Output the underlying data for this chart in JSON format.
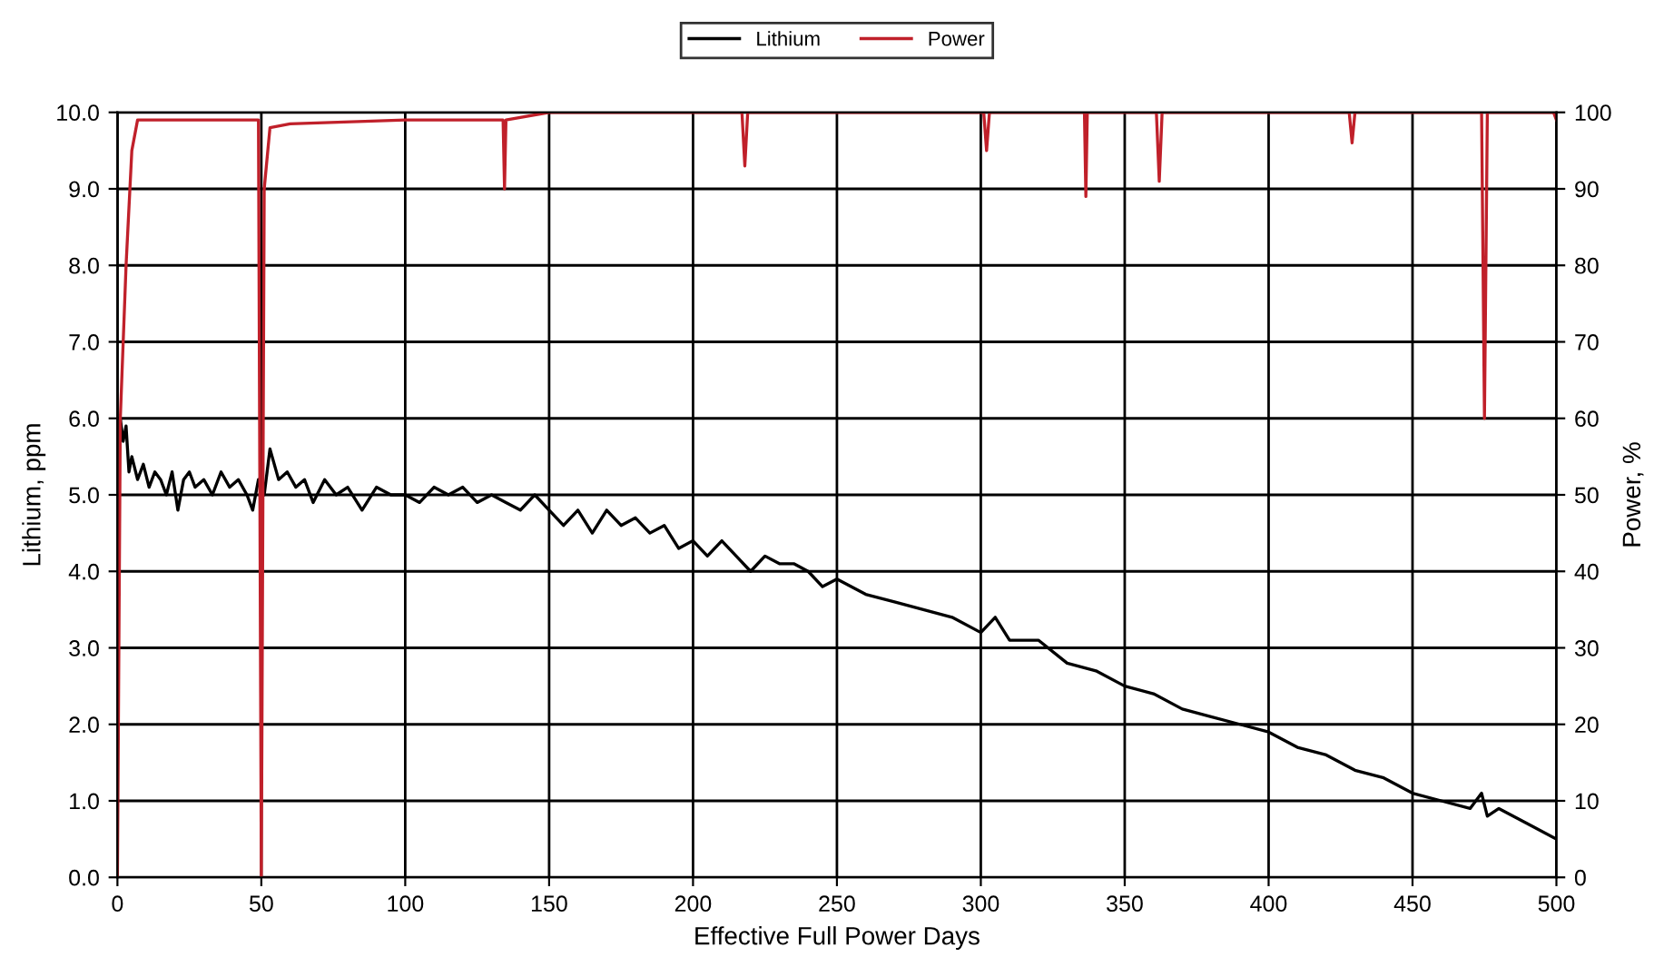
{
  "chart_data": {
    "type": "line",
    "xlabel": "Effective Full Power Days",
    "ylabel": "Lithium, ppm",
    "y2label": "Power, %",
    "xlim": [
      0,
      500
    ],
    "xticks": [
      0,
      50,
      100,
      150,
      200,
      250,
      300,
      350,
      400,
      450,
      500
    ],
    "ylim": [
      0,
      10
    ],
    "yticks": [
      {
        "value": 0,
        "label": "0.0"
      },
      {
        "value": 1,
        "label": "1.0"
      },
      {
        "value": 2,
        "label": "2.0"
      },
      {
        "value": 3,
        "label": "3.0"
      },
      {
        "value": 4,
        "label": "4.0"
      },
      {
        "value": 5,
        "label": "5.0"
      },
      {
        "value": 6,
        "label": "6.0"
      },
      {
        "value": 7,
        "label": "7.0"
      },
      {
        "value": 8,
        "label": "8.0"
      },
      {
        "value": 9,
        "label": "9.0"
      },
      {
        "value": 10,
        "label": "10.0"
      }
    ],
    "y2lim": [
      0,
      100
    ],
    "y2ticks": [
      0,
      10,
      20,
      30,
      40,
      50,
      60,
      70,
      80,
      90,
      100
    ],
    "grid": true,
    "legend": "top",
    "marker": "none",
    "line_style": "solid",
    "series": [
      {
        "name": "Lithium",
        "color": "#000000",
        "x": [
          1,
          2,
          3,
          4,
          5,
          7,
          9,
          11,
          13,
          15,
          17,
          19,
          21,
          23,
          25,
          27,
          30,
          33,
          36,
          39,
          42,
          45,
          47,
          49,
          51,
          53,
          56,
          59,
          62,
          65,
          68,
          72,
          76,
          80,
          85,
          90,
          95,
          100,
          105,
          110,
          115,
          120,
          125,
          130,
          135,
          140,
          145,
          150,
          155,
          160,
          165,
          170,
          175,
          180,
          185,
          190,
          195,
          200,
          205,
          210,
          215,
          220,
          225,
          230,
          235,
          240,
          245,
          250,
          260,
          270,
          280,
          290,
          300,
          305,
          310,
          320,
          330,
          340,
          350,
          360,
          370,
          380,
          390,
          400,
          410,
          420,
          430,
          440,
          450,
          460,
          470,
          474,
          476,
          480,
          490,
          500
        ],
        "values": [
          6.0,
          5.7,
          5.9,
          5.3,
          5.5,
          5.2,
          5.4,
          5.1,
          5.3,
          5.2,
          5.0,
          5.3,
          4.8,
          5.2,
          5.3,
          5.1,
          5.2,
          5.0,
          5.3,
          5.1,
          5.2,
          5.0,
          4.8,
          5.2,
          5.0,
          5.6,
          5.2,
          5.3,
          5.1,
          5.2,
          4.9,
          5.2,
          5.0,
          5.1,
          4.8,
          5.1,
          5.0,
          5.0,
          4.9,
          5.1,
          5.0,
          5.1,
          4.9,
          5.0,
          4.9,
          4.8,
          5.0,
          4.8,
          4.6,
          4.8,
          4.5,
          4.8,
          4.6,
          4.7,
          4.5,
          4.6,
          4.3,
          4.4,
          4.2,
          4.4,
          4.2,
          4.0,
          4.2,
          4.1,
          4.1,
          4.0,
          3.8,
          3.9,
          3.7,
          3.6,
          3.5,
          3.4,
          3.2,
          3.4,
          3.1,
          3.1,
          2.8,
          2.7,
          2.5,
          2.4,
          2.2,
          2.1,
          2.0,
          1.9,
          1.7,
          1.6,
          1.4,
          1.3,
          1.1,
          1.0,
          0.9,
          1.1,
          0.8,
          0.9,
          0.7,
          0.5
        ]
      },
      {
        "name": "Power",
        "color": "#c0202a",
        "axis": "y2",
        "x": [
          0,
          1,
          3,
          5,
          7,
          49,
          50,
          51,
          53,
          60,
          100,
          134,
          134.5,
          135,
          150,
          217,
          218,
          219,
          301,
          302,
          303,
          336,
          336.5,
          337,
          361,
          362,
          363,
          428,
          429,
          430,
          474,
          475,
          476,
          499,
          500
        ],
        "values": [
          0,
          60,
          80,
          95,
          99,
          99,
          0,
          90,
          98,
          98.5,
          99,
          99,
          90,
          99,
          100,
          100,
          93,
          100,
          100,
          95,
          100,
          100,
          89,
          100,
          100,
          91,
          100,
          100,
          96,
          100,
          100,
          60,
          100,
          100,
          99
        ]
      }
    ]
  }
}
